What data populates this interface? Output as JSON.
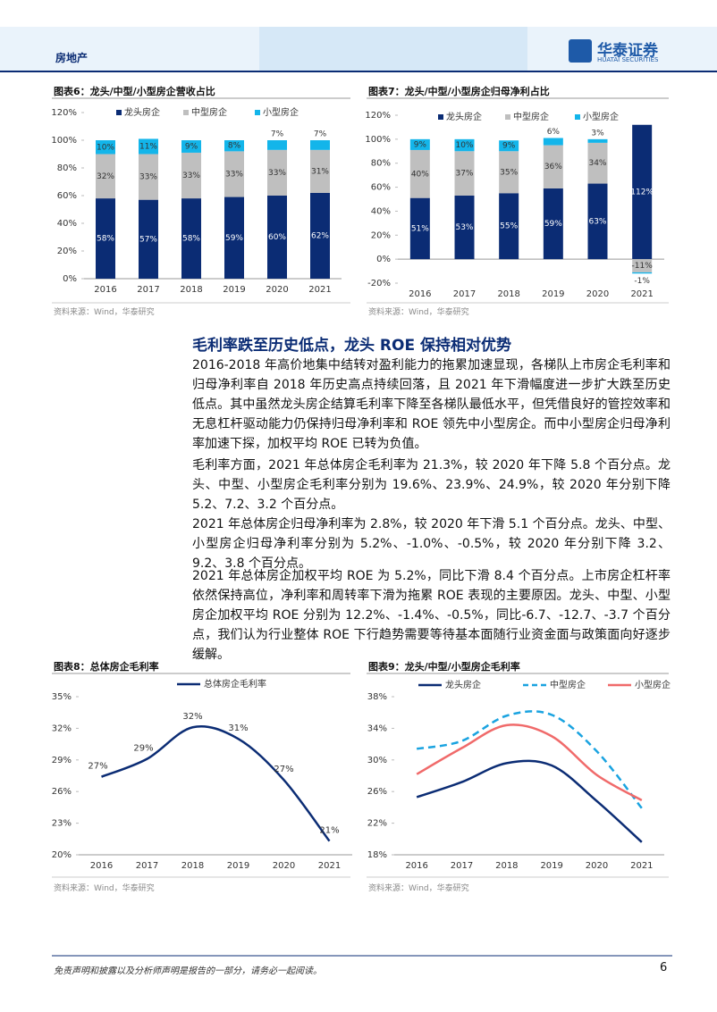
{
  "header": {
    "section": "房地产",
    "brand": "华泰证券",
    "brand_en": "HUATAI SECURITIES"
  },
  "chart_data": [
    {
      "type": "stacked-bar",
      "title": "图表6：龙头/中型/小型房企营收占比",
      "source": "资料来源：Wind，华泰研究",
      "categories": [
        "2016",
        "2017",
        "2018",
        "2019",
        "2020",
        "2021"
      ],
      "series": [
        {
          "name": "龙头房企",
          "color": "#0b2c74",
          "values": [
            58,
            57,
            58,
            59,
            60,
            62
          ],
          "value_labels": [
            "58%",
            "57%",
            "58%",
            "59%",
            "60%",
            "62%"
          ]
        },
        {
          "name": "中型房企",
          "color": "#bfbfbf",
          "values": [
            32,
            33,
            33,
            33,
            33,
            31
          ],
          "value_labels": [
            "32%",
            "33%",
            "33%",
            "33%",
            "33%",
            "31%"
          ]
        },
        {
          "name": "小型房企",
          "color": "#13b5ea",
          "values": [
            10,
            11,
            9,
            8,
            7,
            7
          ],
          "value_labels": [
            "10%",
            "11%",
            "9%",
            "8%",
            "7%",
            "7%"
          ]
        }
      ],
      "ylim": [
        0,
        120
      ],
      "yticks": [
        {
          "value": 0,
          "label": "0%"
        },
        {
          "value": 20,
          "label": "20%"
        },
        {
          "value": 40,
          "label": "40%"
        },
        {
          "value": 60,
          "label": "60%"
        },
        {
          "value": 80,
          "label": "80%"
        },
        {
          "value": 100,
          "label": "100%"
        },
        {
          "value": 120,
          "label": "120%"
        }
      ]
    },
    {
      "type": "stacked-bar",
      "title": "图表7：龙头/中型/小型房企归母净利占比",
      "source": "资料来源：Wind，华泰研究",
      "categories": [
        "2016",
        "2017",
        "2018",
        "2019",
        "2020",
        "2021"
      ],
      "series": [
        {
          "name": "龙头房企",
          "color": "#0b2c74",
          "values": [
            51,
            53,
            55,
            59,
            63,
            112
          ],
          "value_labels": [
            "51%",
            "53%",
            "55%",
            "59%",
            "63%",
            "112%"
          ]
        },
        {
          "name": "中型房企",
          "color": "#bfbfbf",
          "values": [
            40,
            37,
            35,
            36,
            34,
            -11
          ],
          "value_labels": [
            "40%",
            "37%",
            "35%",
            "36%",
            "34%",
            "-11%"
          ]
        },
        {
          "name": "小型房企",
          "color": "#13b5ea",
          "values": [
            9,
            10,
            9,
            6,
            3,
            -1
          ],
          "value_labels": [
            "9%",
            "10%",
            "9%",
            "6%",
            "3%",
            "-1%"
          ]
        }
      ],
      "ylim": [
        -20,
        120
      ],
      "yticks": [
        {
          "value": -20,
          "label": "-20%"
        },
        {
          "value": 0,
          "label": "0%"
        },
        {
          "value": 20,
          "label": "20%"
        },
        {
          "value": 40,
          "label": "40%"
        },
        {
          "value": 60,
          "label": "60%"
        },
        {
          "value": 80,
          "label": "80%"
        },
        {
          "value": 100,
          "label": "100%"
        },
        {
          "value": 120,
          "label": "120%"
        }
      ]
    },
    {
      "type": "line",
      "title": "图表8：总体房企毛利率",
      "source": "资料来源：Wind，华泰研究",
      "categories": [
        "2016",
        "2017",
        "2018",
        "2019",
        "2020",
        "2021"
      ],
      "series": [
        {
          "name": "总体房企毛利率",
          "color": "#0b2c74",
          "values": [
            27.4,
            29.1,
            32.1,
            31.0,
            27.1,
            21.3
          ],
          "value_labels": [
            "27%",
            "29%",
            "32%",
            "31%",
            "27%",
            "21%"
          ]
        }
      ],
      "ylim": [
        20,
        35
      ],
      "yticks": [
        {
          "value": 20,
          "label": "20%"
        },
        {
          "value": 23,
          "label": "23%"
        },
        {
          "value": 26,
          "label": "26%"
        },
        {
          "value": 29,
          "label": "29%"
        },
        {
          "value": 32,
          "label": "32%"
        },
        {
          "value": 35,
          "label": "35%"
        }
      ]
    },
    {
      "type": "line",
      "title": "图表9：龙头/中型/小型房企毛利率",
      "source": "资料来源：Wind，华泰研究",
      "categories": [
        "2016",
        "2017",
        "2018",
        "2019",
        "2020",
        "2021"
      ],
      "series": [
        {
          "name": "龙头房企",
          "color": "#0b2c74",
          "values": [
            25.3,
            27.2,
            29.6,
            29.3,
            24.8,
            19.6
          ]
        },
        {
          "name": "中型房企",
          "color": "#1aa3e0",
          "line_style": "dashed",
          "values": [
            31.4,
            32.4,
            35.6,
            35.7,
            31.1,
            23.9
          ]
        },
        {
          "name": "小型房企",
          "color": "#f06a6a",
          "values": [
            28.2,
            31.5,
            34.4,
            33.0,
            28.1,
            24.9
          ]
        }
      ],
      "ylim": [
        18,
        38
      ],
      "yticks": [
        {
          "value": 18,
          "label": "18%"
        },
        {
          "value": 22,
          "label": "22%"
        },
        {
          "value": 26,
          "label": "26%"
        },
        {
          "value": 30,
          "label": "30%"
        },
        {
          "value": 34,
          "label": "34%"
        },
        {
          "value": 38,
          "label": "38%"
        }
      ]
    }
  ],
  "article": {
    "heading": "毛利率跌至历史低点，龙头 ROE 保持相对优势",
    "paragraphs": [
      "2016-2018 年高价地集中结转对盈利能力的拖累加速显现，各梯队上市房企毛利率和归母净利率自 2018 年历史高点持续回落，且 2021 年下滑幅度进一步扩大跌至历史低点。其中虽然龙头房企结算毛利率下降至各梯队最低水平，但凭借良好的管控效率和无息杠杆驱动能力仍保持归母净利率和 ROE 领先中小型房企。而中小型房企归母净利率加速下探，加权平均 ROE 已转为负值。",
      "毛利率方面，2021 年总体房企毛利率为 21.3%，较 2020 年下降 5.8 个百分点。龙头、中型、小型房企毛利率分别为 19.6%、23.9%、24.9%，较 2020 年分别下降 5.2、7.2、3.2 个百分点。",
      "2021 年总体房企归母净利率为 2.8%，较 2020 年下滑 5.1 个百分点。龙头、中型、小型房企归母净利率分别为 5.2%、-1.0%、-0.5%，较 2020 年分别下降 3.2、9.2、3.8 个百分点。",
      "2021 年总体房企加权平均 ROE 为 5.2%，同比下滑 8.4 个百分点。上市房企杠杆率依然保持高位，净利率和周转率下滑为拖累 ROE 表现的主要原因。龙头、中型、小型房企加权平均 ROE 分别为 12.2%、-1.4%、-0.5%，同比-6.7、-12.7、-3.7 个百分点，我们认为行业整体 ROE 下行趋势需要等待基本面随行业资金面与政策面向好逐步缓解。"
    ]
  },
  "footer": {
    "disclaimer": "免责声明和披露以及分析师声明是报告的一部分，请务必一起阅读。",
    "page": 6
  }
}
